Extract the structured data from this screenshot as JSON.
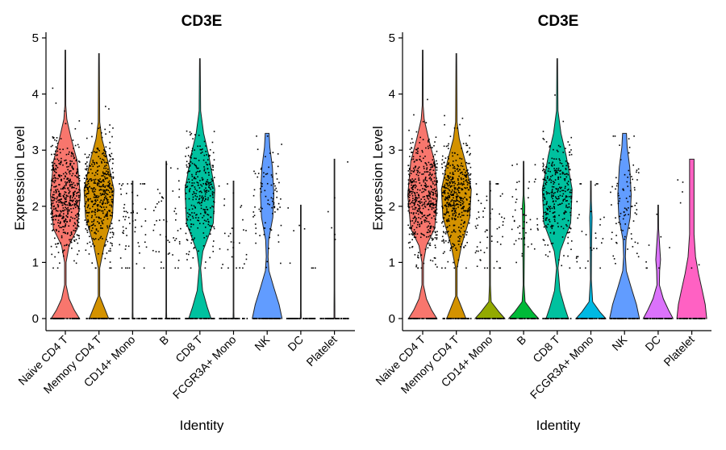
{
  "chart_data": [
    {
      "type": "violin",
      "title": "CD3E",
      "xlabel": "Identity",
      "ylabel": "Expression Level",
      "ylim": [
        0,
        5
      ],
      "yticks": [
        "0",
        "1",
        "2",
        "3",
        "4",
        "5"
      ],
      "grid": false,
      "legend": "none",
      "violin_scale": "area",
      "categories": [
        "Naive CD4 T",
        "Memory CD4 T",
        "CD14+ Mono",
        "B",
        "CD8 T",
        "FCGR3A+ Mono",
        "NK",
        "DC",
        "Platelet"
      ],
      "colors": [
        "#F8766D",
        "#D39200",
        "#93AA00",
        "#00BA38",
        "#00C19F",
        "#00B9E3",
        "#619CFF",
        "#DB72FB",
        "#FF61C3"
      ],
      "relative_width": [
        1,
        1,
        0.03,
        0.03,
        1,
        0.03,
        1,
        0.03,
        0.03
      ],
      "max_values": [
        4.78,
        4.72,
        2.45,
        2.8,
        4.63,
        2.45,
        3.3,
        2.02,
        2.84
      ]
    },
    {
      "type": "violin",
      "title": "CD3E",
      "xlabel": "Identity",
      "ylabel": "Expression Level",
      "ylim": [
        0,
        5
      ],
      "yticks": [
        "0",
        "1",
        "2",
        "3",
        "4",
        "5"
      ],
      "grid": false,
      "legend": "none",
      "violin_scale": "width",
      "categories": [
        "Naive CD4 T",
        "Memory CD4 T",
        "CD14+ Mono",
        "B",
        "CD8 T",
        "FCGR3A+ Mono",
        "NK",
        "DC",
        "Platelet"
      ],
      "colors": [
        "#F8766D",
        "#D39200",
        "#93AA00",
        "#00BA38",
        "#00C19F",
        "#00B9E3",
        "#619CFF",
        "#DB72FB",
        "#FF61C3"
      ],
      "relative_width": [
        1,
        1,
        1,
        1,
        1,
        1,
        1,
        1,
        1
      ],
      "max_values": [
        4.78,
        4.72,
        2.45,
        2.8,
        4.63,
        2.45,
        3.3,
        2.02,
        2.84
      ]
    }
  ],
  "density_profiles": [
    [
      [
        0,
        0.95
      ],
      [
        0.15,
        0.6
      ],
      [
        0.35,
        0.25
      ],
      [
        0.6,
        0.05
      ],
      [
        1.0,
        0.05
      ],
      [
        1.3,
        0.25
      ],
      [
        1.6,
        0.8
      ],
      [
        2.2,
        1.0
      ],
      [
        2.8,
        0.8
      ],
      [
        3.2,
        0.4
      ],
      [
        3.55,
        0.1
      ],
      [
        3.8,
        0.03
      ],
      [
        4.78,
        0.02
      ]
    ],
    [
      [
        0,
        0.65
      ],
      [
        0.2,
        0.35
      ],
      [
        0.4,
        0.05
      ],
      [
        0.9,
        0.05
      ],
      [
        1.3,
        0.35
      ],
      [
        1.8,
        0.9
      ],
      [
        2.3,
        1.0
      ],
      [
        2.8,
        0.6
      ],
      [
        3.2,
        0.2
      ],
      [
        3.5,
        0.05
      ],
      [
        4.72,
        0.02
      ]
    ],
    [
      [
        0,
        1.0
      ],
      [
        0.12,
        0.6
      ],
      [
        0.3,
        0.08
      ],
      [
        0.6,
        0.03
      ],
      [
        2.45,
        0.02
      ]
    ],
    [
      [
        0,
        1.0
      ],
      [
        0.12,
        0.6
      ],
      [
        0.3,
        0.1
      ],
      [
        0.6,
        0.03
      ],
      [
        1.6,
        0.06
      ],
      [
        2.0,
        0.08
      ],
      [
        2.2,
        0.03
      ],
      [
        2.8,
        0.02
      ]
    ],
    [
      [
        0,
        0.75
      ],
      [
        0.2,
        0.5
      ],
      [
        0.5,
        0.18
      ],
      [
        0.9,
        0.05
      ],
      [
        1.2,
        0.2
      ],
      [
        1.7,
        0.9
      ],
      [
        2.3,
        1.0
      ],
      [
        2.9,
        0.6
      ],
      [
        3.3,
        0.25
      ],
      [
        3.7,
        0.05
      ],
      [
        4.63,
        0.02
      ]
    ],
    [
      [
        0,
        1.0
      ],
      [
        0.12,
        0.6
      ],
      [
        0.3,
        0.12
      ],
      [
        0.7,
        0.03
      ],
      [
        1.4,
        0.05
      ],
      [
        1.8,
        0.08
      ],
      [
        2.1,
        0.03
      ],
      [
        2.45,
        0.02
      ]
    ],
    [
      [
        0,
        1.0
      ],
      [
        0.25,
        0.8
      ],
      [
        0.55,
        0.45
      ],
      [
        0.85,
        0.12
      ],
      [
        1.1,
        0.06
      ],
      [
        1.4,
        0.1
      ],
      [
        1.8,
        0.38
      ],
      [
        2.2,
        0.45
      ],
      [
        2.7,
        0.35
      ],
      [
        3.05,
        0.18
      ],
      [
        3.3,
        0.13
      ]
    ],
    [
      [
        0,
        1.0
      ],
      [
        0.15,
        0.7
      ],
      [
        0.35,
        0.35
      ],
      [
        0.6,
        0.08
      ],
      [
        0.85,
        0.1
      ],
      [
        1.05,
        0.16
      ],
      [
        1.3,
        0.1
      ],
      [
        1.6,
        0.03
      ],
      [
        2.02,
        0.02
      ]
    ],
    [
      [
        0,
        1.0
      ],
      [
        0.25,
        0.9
      ],
      [
        0.5,
        0.7
      ],
      [
        0.8,
        0.45
      ],
      [
        1.1,
        0.25
      ],
      [
        1.5,
        0.15
      ],
      [
        2.0,
        0.15
      ],
      [
        2.84,
        0.15
      ]
    ]
  ]
}
